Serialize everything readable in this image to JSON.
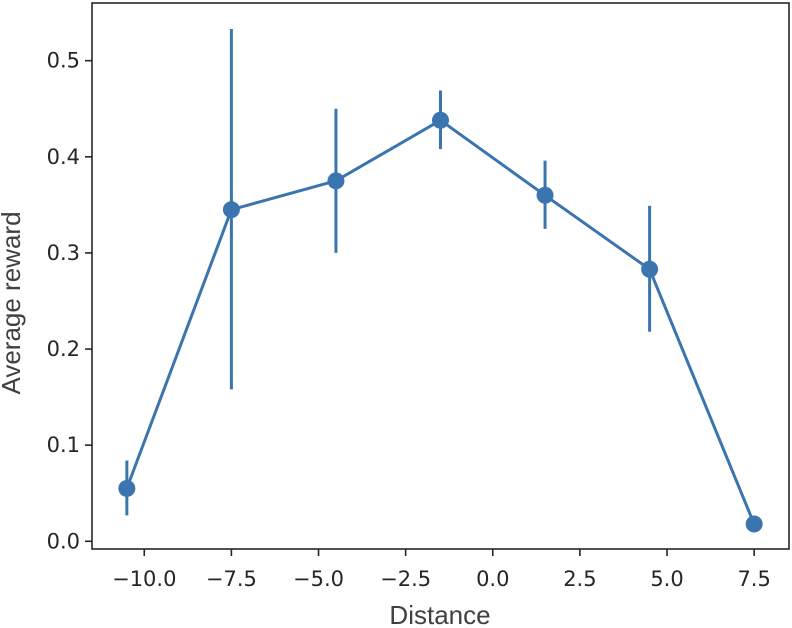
{
  "chart_data": {
    "type": "line",
    "xlabel": "Distance",
    "ylabel": "Average reward",
    "xlim": [
      -11.5,
      8.5
    ],
    "ylim": [
      -0.008,
      0.56
    ],
    "x_ticks": [
      -10.0,
      -7.5,
      -5.0,
      -2.5,
      0.0,
      2.5,
      5.0,
      7.5
    ],
    "x_tick_labels": [
      "−10.0",
      "−7.5",
      "−5.0",
      "−2.5",
      "0.0",
      "2.5",
      "5.0",
      "7.5"
    ],
    "y_ticks": [
      0.0,
      0.1,
      0.2,
      0.3,
      0.4,
      0.5
    ],
    "y_tick_labels": [
      "0.0",
      "0.1",
      "0.2",
      "0.3",
      "0.4",
      "0.5"
    ],
    "grid": false,
    "series": [
      {
        "color": "#3a75b0",
        "x": [
          -10.5,
          -7.5,
          -4.5,
          -1.5,
          1.5,
          4.5,
          7.5
        ],
        "y": [
          0.055,
          0.345,
          0.375,
          0.438,
          0.36,
          0.283,
          0.018
        ],
        "error_low": [
          0.027,
          0.158,
          0.3,
          0.408,
          0.325,
          0.218,
          0.018
        ],
        "error_high": [
          0.084,
          0.533,
          0.45,
          0.469,
          0.396,
          0.349,
          0.018
        ]
      }
    ]
  }
}
